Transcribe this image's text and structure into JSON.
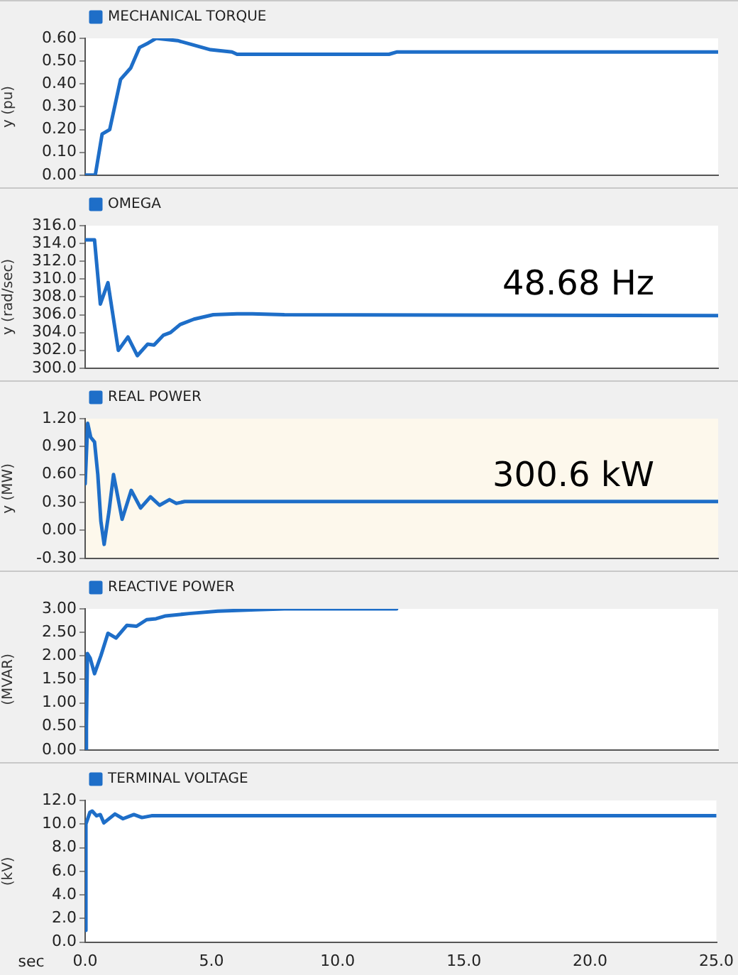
{
  "chart_data": [
    {
      "type": "line",
      "ylabel": "y (pu)",
      "legend": "top left",
      "grid": false,
      "marker": "none",
      "line_style": "solid",
      "tick_labels": "y",
      "xlim": [
        0,
        25
      ],
      "ylim": [
        0,
        0.6
      ],
      "yticks": [
        {
          "value": 0,
          "label": "0.00"
        },
        {
          "value": 0.1,
          "label": "0.10"
        },
        {
          "value": 0.2,
          "label": "0.20"
        },
        {
          "value": 0.3,
          "label": "0.30"
        },
        {
          "value": 0.4,
          "label": "0.40"
        },
        {
          "value": 0.5,
          "label": "0.50"
        },
        {
          "value": 0.6,
          "label": "0.60"
        }
      ],
      "x": [
        0,
        0.4,
        0.67,
        0.97,
        1.4,
        1.8,
        2.15,
        2.5,
        2.8,
        3.65,
        4.3,
        4.95,
        5.8,
        6.0,
        12.0,
        12.3,
        25
      ],
      "series": [
        {
          "name": "MECHANICAL TORQUE",
          "color": "#1e6ec8",
          "values": [
            0,
            0,
            0.18,
            0.2,
            0.42,
            0.47,
            0.56,
            0.58,
            0.6,
            0.59,
            0.57,
            0.55,
            0.54,
            0.53,
            0.53,
            0.54,
            0.54
          ]
        }
      ]
    },
    {
      "type": "line",
      "ylabel": "y (rad/sec)",
      "legend": "top left",
      "grid": false,
      "marker": "none",
      "line_style": "solid",
      "tick_labels": "y",
      "annotations": [
        "48.68 Hz"
      ],
      "xlim": [
        0,
        25
      ],
      "ylim": [
        300,
        316
      ],
      "yticks": [
        {
          "value": 300,
          "label": "300.0"
        },
        {
          "value": 302,
          "label": "302.0"
        },
        {
          "value": 304,
          "label": "304.0"
        },
        {
          "value": 306,
          "label": "306.0"
        },
        {
          "value": 308,
          "label": "308.0"
        },
        {
          "value": 310,
          "label": "310.0"
        },
        {
          "value": 312,
          "label": "312.0"
        },
        {
          "value": 314,
          "label": "314.0"
        },
        {
          "value": 316,
          "label": "316.0"
        }
      ],
      "x": [
        0,
        0.37,
        0.6,
        0.9,
        1.31,
        1.69,
        2.06,
        2.47,
        2.72,
        3.09,
        3.37,
        3.75,
        4.3,
        5.06,
        6.0,
        6.6,
        7.87,
        25
      ],
      "series": [
        {
          "name": "OMEGA",
          "color": "#1e6ec8",
          "values": [
            314.4,
            314.4,
            307.2,
            309.6,
            302.0,
            303.5,
            301.4,
            302.7,
            302.6,
            303.7,
            304.0,
            304.9,
            305.5,
            306.0,
            306.1,
            306.1,
            306.0,
            305.9
          ]
        }
      ]
    },
    {
      "type": "line",
      "ylabel": "y (MW)",
      "legend": "top left",
      "grid": false,
      "marker": "none",
      "line_style": "solid",
      "tick_labels": "y",
      "annotations": [
        "300.6 kW"
      ],
      "bands": [
        {
          "axis": "y",
          "from": -0.3,
          "to": 1.2,
          "color": "#fdf8ec"
        }
      ],
      "xlim": [
        0,
        25
      ],
      "ylim": [
        -0.3,
        1.2
      ],
      "yticks": [
        {
          "value": -0.3,
          "label": "-0.30"
        },
        {
          "value": 0,
          "label": "0.00"
        },
        {
          "value": 0.3,
          "label": "0.30"
        },
        {
          "value": 0.6,
          "label": "0.60"
        },
        {
          "value": 0.9,
          "label": "0.90"
        },
        {
          "value": 1.2,
          "label": "1.20"
        }
      ],
      "x": [
        0,
        0.1,
        0.22,
        0.37,
        0.5,
        0.62,
        0.75,
        0.94,
        1.12,
        1.46,
        1.82,
        2.19,
        2.58,
        2.94,
        3.33,
        3.6,
        3.93,
        25
      ],
      "series": [
        {
          "name": "REAL POWER",
          "color": "#1e6ec8",
          "values": [
            0.5,
            1.15,
            1.0,
            0.95,
            0.6,
            0.1,
            -0.15,
            0.2,
            0.6,
            0.12,
            0.43,
            0.24,
            0.36,
            0.27,
            0.33,
            0.29,
            0.31,
            0.31
          ]
        }
      ]
    },
    {
      "type": "line",
      "ylabel": "(MVAR)",
      "legend": "top left",
      "grid": false,
      "marker": "none",
      "line_style": "solid",
      "tick_labels": "y",
      "xlim": [
        0,
        25
      ],
      "ylim": [
        0,
        3
      ],
      "yticks": [
        {
          "value": 0,
          "label": "0.00"
        },
        {
          "value": 0.5,
          "label": "0.50"
        },
        {
          "value": 1,
          "label": "1.00"
        },
        {
          "value": 1.5,
          "label": "1.50"
        },
        {
          "value": 2,
          "label": "2.00"
        },
        {
          "value": 2.5,
          "label": "2.50"
        },
        {
          "value": 3,
          "label": "3.00"
        }
      ],
      "x": [
        0,
        0.05,
        0.09,
        0.2,
        0.37,
        0.62,
        0.9,
        1.22,
        1.65,
        2.03,
        2.43,
        2.8,
        3.18,
        4.1,
        5.24,
        6.74,
        7.87,
        12.3
      ],
      "series": [
        {
          "name": "REACTIVE POWER",
          "color": "#1e6ec8",
          "values": [
            0,
            0.5,
            2.05,
            1.95,
            1.62,
            2.0,
            2.48,
            2.38,
            2.65,
            2.63,
            2.77,
            2.79,
            2.85,
            2.9,
            2.95,
            2.98,
            3.0,
            3.0
          ]
        }
      ]
    },
    {
      "type": "line",
      "xlabel": "sec",
      "ylabel": "(kV)",
      "legend": "top left",
      "grid": false,
      "marker": "none",
      "line_style": "solid",
      "xlim": [
        0,
        25
      ],
      "xticks": [
        {
          "value": 0,
          "label": "0.0"
        },
        {
          "value": 5,
          "label": "5.0"
        },
        {
          "value": 10,
          "label": "10.0"
        },
        {
          "value": 15,
          "label": "15.0"
        },
        {
          "value": 20,
          "label": "20.0"
        },
        {
          "value": 25,
          "label": "25.0"
        }
      ],
      "ylim": [
        0,
        12
      ],
      "yticks": [
        {
          "value": 0,
          "label": "0.0"
        },
        {
          "value": 2,
          "label": "2.0"
        },
        {
          "value": 4,
          "label": "4.0"
        },
        {
          "value": 6,
          "label": "6.0"
        },
        {
          "value": 8,
          "label": "8.0"
        },
        {
          "value": 10,
          "label": "10.0"
        },
        {
          "value": 12,
          "label": "12.0"
        }
      ],
      "x": [
        0,
        0.03,
        0.19,
        0.28,
        0.45,
        0.6,
        0.74,
        1.18,
        1.5,
        1.93,
        2.25,
        2.63,
        25
      ],
      "series": [
        {
          "name": "TERMINAL VOLTAGE",
          "color": "#1e6ec8",
          "values": [
            1.0,
            10.0,
            11.0,
            11.1,
            10.7,
            10.8,
            10.1,
            10.85,
            10.45,
            10.8,
            10.55,
            10.7,
            10.7
          ]
        }
      ]
    }
  ]
}
